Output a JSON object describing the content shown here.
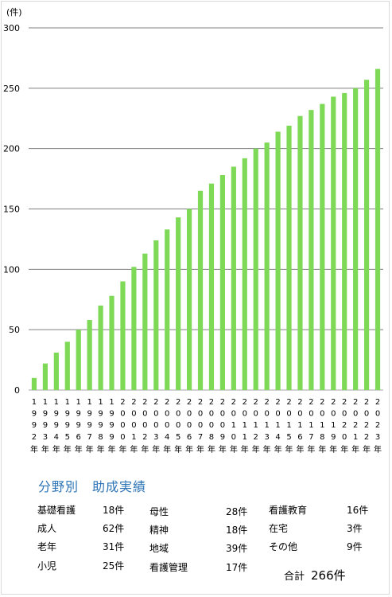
{
  "chart_data": {
    "type": "bar",
    "unit_label": "(件)",
    "color": "#7ed957",
    "ylim": [
      0,
      300
    ],
    "yticks": [
      0,
      50,
      100,
      150,
      200,
      250,
      300
    ],
    "grid": true,
    "categories": [
      {
        "digits": [
          "1",
          "9",
          "9",
          "2"
        ],
        "suffix": "年"
      },
      {
        "digits": [
          "1",
          "9",
          "9",
          "3"
        ],
        "suffix": "年"
      },
      {
        "digits": [
          "1",
          "9",
          "9",
          "4"
        ],
        "suffix": "年"
      },
      {
        "digits": [
          "1",
          "9",
          "9",
          "5"
        ],
        "suffix": "年"
      },
      {
        "digits": [
          "1",
          "9",
          "9",
          "6"
        ],
        "suffix": "年"
      },
      {
        "digits": [
          "1",
          "9",
          "9",
          "7"
        ],
        "suffix": "年"
      },
      {
        "digits": [
          "1",
          "9",
          "9",
          "8"
        ],
        "suffix": "年"
      },
      {
        "digits": [
          "1",
          "9",
          "9",
          "9"
        ],
        "suffix": "年"
      },
      {
        "digits": [
          "2",
          "0",
          "0",
          "0"
        ],
        "suffix": "年"
      },
      {
        "digits": [
          "2",
          "0",
          "0",
          "1"
        ],
        "suffix": "年"
      },
      {
        "digits": [
          "2",
          "0",
          "0",
          "2"
        ],
        "suffix": "年"
      },
      {
        "digits": [
          "2",
          "0",
          "0",
          "3"
        ],
        "suffix": "年"
      },
      {
        "digits": [
          "2",
          "0",
          "0",
          "4"
        ],
        "suffix": "年"
      },
      {
        "digits": [
          "2",
          "0",
          "0",
          "5"
        ],
        "suffix": "年"
      },
      {
        "digits": [
          "2",
          "0",
          "0",
          "6"
        ],
        "suffix": "年"
      },
      {
        "digits": [
          "2",
          "0",
          "0",
          "7"
        ],
        "suffix": "年"
      },
      {
        "digits": [
          "2",
          "0",
          "0",
          "8"
        ],
        "suffix": "年"
      },
      {
        "digits": [
          "2",
          "0",
          "0",
          "9"
        ],
        "suffix": "年"
      },
      {
        "digits": [
          "2",
          "0",
          "1",
          "0"
        ],
        "suffix": "年"
      },
      {
        "digits": [
          "2",
          "0",
          "1",
          "1"
        ],
        "suffix": "年"
      },
      {
        "digits": [
          "2",
          "0",
          "1",
          "2"
        ],
        "suffix": "年"
      },
      {
        "digits": [
          "2",
          "0",
          "1",
          "3"
        ],
        "suffix": "年"
      },
      {
        "digits": [
          "2",
          "0",
          "1",
          "4"
        ],
        "suffix": "年"
      },
      {
        "digits": [
          "2",
          "0",
          "1",
          "5"
        ],
        "suffix": "年"
      },
      {
        "digits": [
          "2",
          "0",
          "1",
          "6"
        ],
        "suffix": "年"
      },
      {
        "digits": [
          "2",
          "0",
          "1",
          "7"
        ],
        "suffix": "年"
      },
      {
        "digits": [
          "2",
          "0",
          "1",
          "8"
        ],
        "suffix": "年"
      },
      {
        "digits": [
          "2",
          "0",
          "1",
          "9"
        ],
        "suffix": "年"
      },
      {
        "digits": [
          "2",
          "0",
          "2",
          "0"
        ],
        "suffix": "年"
      },
      {
        "digits": [
          "2",
          "0",
          "2",
          "1"
        ],
        "suffix": "年"
      },
      {
        "digits": [
          "2",
          "0",
          "2",
          "2"
        ],
        "suffix": "年"
      },
      {
        "digits": [
          "2",
          "0",
          "2",
          "3"
        ],
        "suffix": "年"
      }
    ],
    "values": [
      10,
      22,
      31,
      40,
      50,
      58,
      70,
      78,
      90,
      102,
      113,
      124,
      133,
      143,
      150,
      165,
      171,
      178,
      185,
      192,
      200,
      205,
      214,
      219,
      227,
      232,
      237,
      243,
      246,
      250,
      257,
      266
    ]
  },
  "stats": {
    "title": "分野別　助成実績",
    "columns": [
      [
        {
          "label": "基礎看護",
          "count": "18件"
        },
        {
          "label": "成人",
          "count": "62件"
        },
        {
          "label": "老年",
          "count": "31件"
        },
        {
          "label": "小児",
          "count": "25件"
        }
      ],
      [
        {
          "label": "母性",
          "count": "28件"
        },
        {
          "label": "精神",
          "count": "18件"
        },
        {
          "label": "地域",
          "count": "39件"
        },
        {
          "label": "看護管理",
          "count": "17件"
        }
      ],
      [
        {
          "label": "看護教育",
          "count": "16件"
        },
        {
          "label": "在宅",
          "count": "3件"
        },
        {
          "label": "その他",
          "count": "9件"
        }
      ]
    ],
    "total_label": "合計",
    "total_value": "266件"
  }
}
